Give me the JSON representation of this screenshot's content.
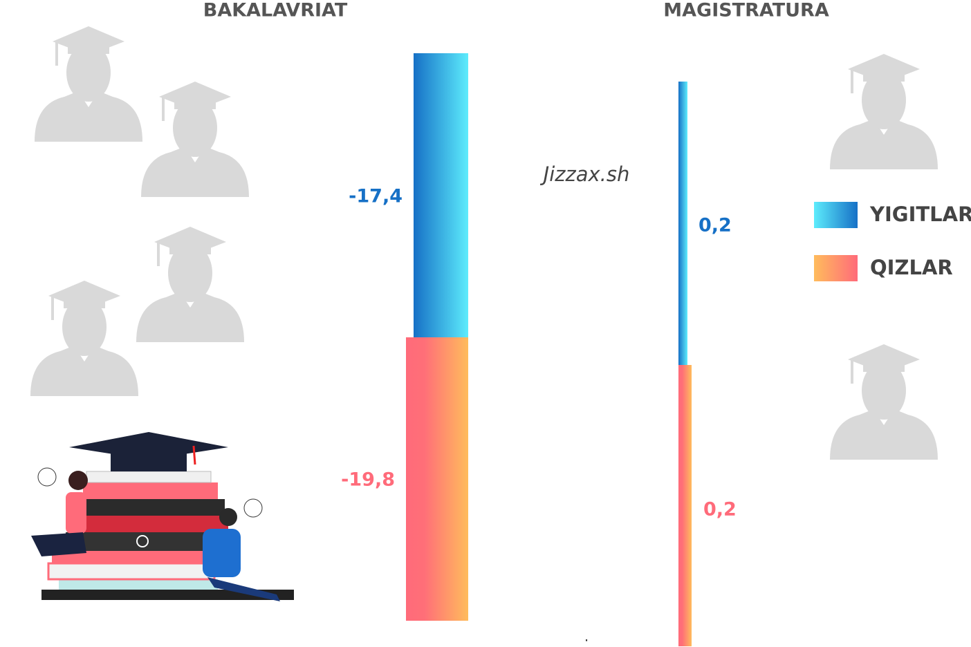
{
  "panels": [
    {
      "title": "BAKALAVRIAT",
      "labels": [
        "-17,4",
        "-19,8"
      ]
    },
    {
      "title": "MAGISTRATURA",
      "labels": [
        "0,2",
        "0,2"
      ]
    }
  ],
  "region": "Jizzax.sh",
  "legend": [
    "YIGITLAR",
    "QIZLAR"
  ],
  "footnote": "."
}
